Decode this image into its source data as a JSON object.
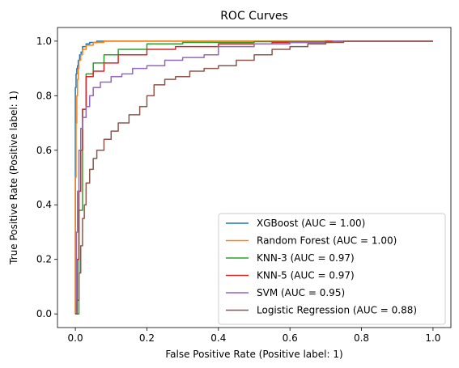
{
  "chart_data": {
    "type": "line",
    "title": "ROC Curves",
    "xlabel": "False Positive Rate (Positive label: 1)",
    "ylabel": "True Positive Rate (Positive label: 1)",
    "xlim": [
      -0.05,
      1.05
    ],
    "ylim": [
      -0.05,
      1.05
    ],
    "xticks": [
      0.0,
      0.2,
      0.4,
      0.6,
      0.8,
      1.0
    ],
    "yticks": [
      0.0,
      0.2,
      0.4,
      0.6,
      0.8,
      1.0
    ],
    "tick_labels_x": [
      "0.0",
      "0.2",
      "0.4",
      "0.6",
      "0.8",
      "1.0"
    ],
    "tick_labels_y": [
      "0.0",
      "0.2",
      "0.4",
      "0.6",
      "0.8",
      "1.0"
    ],
    "grid": false,
    "legend_position": "lower-right",
    "series": [
      {
        "name": "XGBoost (AUC = 1.00)",
        "color": "#1f77b4",
        "x": [
          0,
          0,
          0.002,
          0.004,
          0.006,
          0.008,
          0.012,
          0.016,
          0.02,
          0.03,
          0.04,
          0.06,
          0.1,
          0.2,
          0.4,
          0.7,
          1.0
        ],
        "y": [
          0,
          0.83,
          0.88,
          0.9,
          0.91,
          0.93,
          0.95,
          0.96,
          0.98,
          0.99,
          0.995,
          1.0,
          1.0,
          1.0,
          1.0,
          1.0,
          1.0
        ]
      },
      {
        "name": "Random Forest (AUC = 1.00)",
        "color": "#ff7f0e",
        "x": [
          0,
          0,
          0.002,
          0.004,
          0.006,
          0.008,
          0.01,
          0.015,
          0.02,
          0.03,
          0.05,
          0.08,
          0.2,
          0.5,
          1.0
        ],
        "y": [
          0,
          0.5,
          0.7,
          0.8,
          0.86,
          0.9,
          0.93,
          0.95,
          0.97,
          0.985,
          0.995,
          1.0,
          1.0,
          1.0,
          1.0
        ]
      },
      {
        "name": "KNN-3 (AUC = 0.97)",
        "color": "#2ca02c",
        "x": [
          0,
          0.01,
          0.02,
          0.03,
          0.05,
          0.08,
          0.12,
          0.2,
          0.3,
          0.5,
          0.7,
          1.0
        ],
        "y": [
          0,
          0.38,
          0.75,
          0.88,
          0.92,
          0.95,
          0.97,
          0.99,
          0.995,
          0.998,
          1.0,
          1.0
        ]
      },
      {
        "name": "KNN-5 (AUC = 0.97)",
        "color": "#d62728",
        "x": [
          0,
          0.005,
          0.01,
          0.015,
          0.02,
          0.03,
          0.05,
          0.08,
          0.12,
          0.2,
          0.28,
          0.4,
          0.55,
          0.7,
          1.0
        ],
        "y": [
          0,
          0.2,
          0.45,
          0.6,
          0.75,
          0.87,
          0.89,
          0.92,
          0.95,
          0.97,
          0.98,
          0.99,
          0.995,
          1.0,
          1.0
        ]
      },
      {
        "name": "SVM (AUC = 0.95)",
        "color": "#9467bd",
        "x": [
          0,
          0.003,
          0.006,
          0.01,
          0.015,
          0.02,
          0.03,
          0.04,
          0.05,
          0.07,
          0.1,
          0.13,
          0.16,
          0.2,
          0.25,
          0.3,
          0.36,
          0.4,
          0.5,
          0.6,
          0.72,
          1.0
        ],
        "y": [
          0,
          0.3,
          0.45,
          0.6,
          0.68,
          0.72,
          0.76,
          0.8,
          0.83,
          0.85,
          0.87,
          0.88,
          0.9,
          0.91,
          0.93,
          0.94,
          0.95,
          0.98,
          0.99,
          0.995,
          1.0,
          1.0
        ]
      },
      {
        "name": "Logistic Regression (AUC = 0.88)",
        "color": "#8c564b",
        "x": [
          0,
          0.005,
          0.01,
          0.015,
          0.02,
          0.025,
          0.03,
          0.04,
          0.05,
          0.06,
          0.08,
          0.1,
          0.12,
          0.15,
          0.18,
          0.2,
          0.22,
          0.25,
          0.28,
          0.32,
          0.36,
          0.4,
          0.45,
          0.5,
          0.55,
          0.6,
          0.65,
          0.7,
          0.75,
          1.0
        ],
        "y": [
          0,
          0.05,
          0.15,
          0.25,
          0.35,
          0.4,
          0.48,
          0.53,
          0.57,
          0.6,
          0.64,
          0.67,
          0.7,
          0.73,
          0.76,
          0.8,
          0.84,
          0.86,
          0.87,
          0.89,
          0.9,
          0.91,
          0.93,
          0.95,
          0.97,
          0.98,
          0.99,
          0.995,
          1.0,
          1.0
        ]
      }
    ]
  }
}
